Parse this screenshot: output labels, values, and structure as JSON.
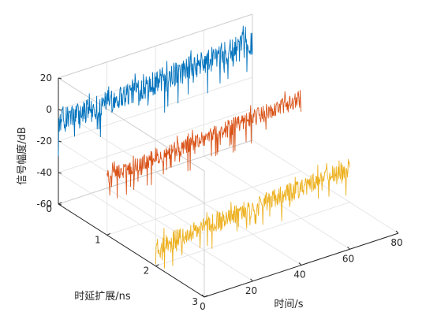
{
  "chart_data": {
    "type": "line",
    "view": "3d-waterfall",
    "grid": true,
    "xlabel": "时间/s",
    "ylabel": "时延扩展/ns",
    "zlabel": "信号幅度/dB",
    "xlim": [
      0,
      80
    ],
    "ylim": [
      0,
      3
    ],
    "zlim": [
      -60,
      20
    ],
    "xticks": [
      "0",
      "20",
      "40",
      "60",
      "80"
    ],
    "yticks": [
      "0",
      "1",
      "2",
      "3"
    ],
    "zticks": [
      "-60",
      "-40",
      "-20",
      "0",
      "20"
    ],
    "series": [
      {
        "color": "#0072BD",
        "delay": 0,
        "t_range": [
          0,
          80
        ],
        "mean_start": -8,
        "mean_end": 2,
        "floor_start": -30,
        "floor_end": -22,
        "peak_start": 5,
        "peak_end": 15
      },
      {
        "color": "#D95319",
        "delay": 1,
        "t_range": [
          0,
          80
        ],
        "mean_start": -23,
        "mean_end": -14,
        "floor_start": -40,
        "floor_end": -33,
        "peak_start": -15,
        "peak_end": -5
      },
      {
        "color": "#EDB120",
        "delay": 2,
        "t_range": [
          0,
          80
        ],
        "mean_start": -48,
        "mean_end": -38,
        "floor_start": -65,
        "floor_end": -55,
        "peak_start": -38,
        "peak_end": -28
      }
    ]
  }
}
